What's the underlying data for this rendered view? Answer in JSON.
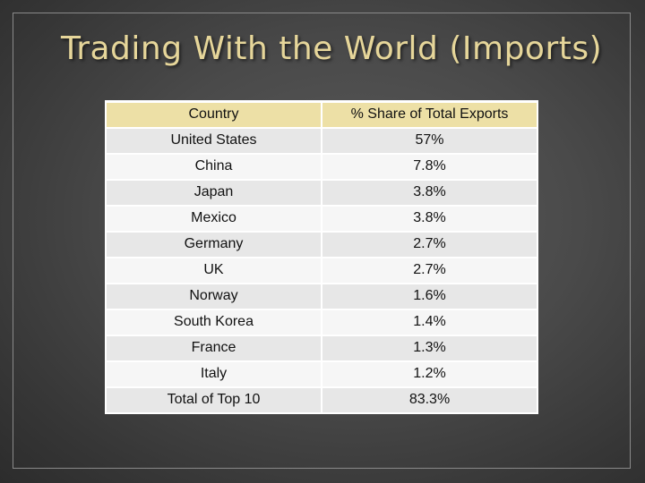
{
  "slide": {
    "title": "Trading With the World (Imports)"
  },
  "table": {
    "headers": [
      "Country",
      "% Share of Total Exports"
    ],
    "rows": [
      [
        "United States",
        "57%"
      ],
      [
        "China",
        "7.8%"
      ],
      [
        "Japan",
        "3.8%"
      ],
      [
        "Mexico",
        "3.8%"
      ],
      [
        "Germany",
        "2.7%"
      ],
      [
        "UK",
        "2.7%"
      ],
      [
        "Norway",
        "1.6%"
      ],
      [
        "South Korea",
        "1.4%"
      ],
      [
        "France",
        "1.3%"
      ],
      [
        "Italy",
        "1.2%"
      ],
      [
        "Total of Top 10",
        "83.3%"
      ]
    ]
  },
  "colors": {
    "title": "#e6d69a",
    "header_background": "#ede0a6",
    "background": "#4a4a4a"
  }
}
